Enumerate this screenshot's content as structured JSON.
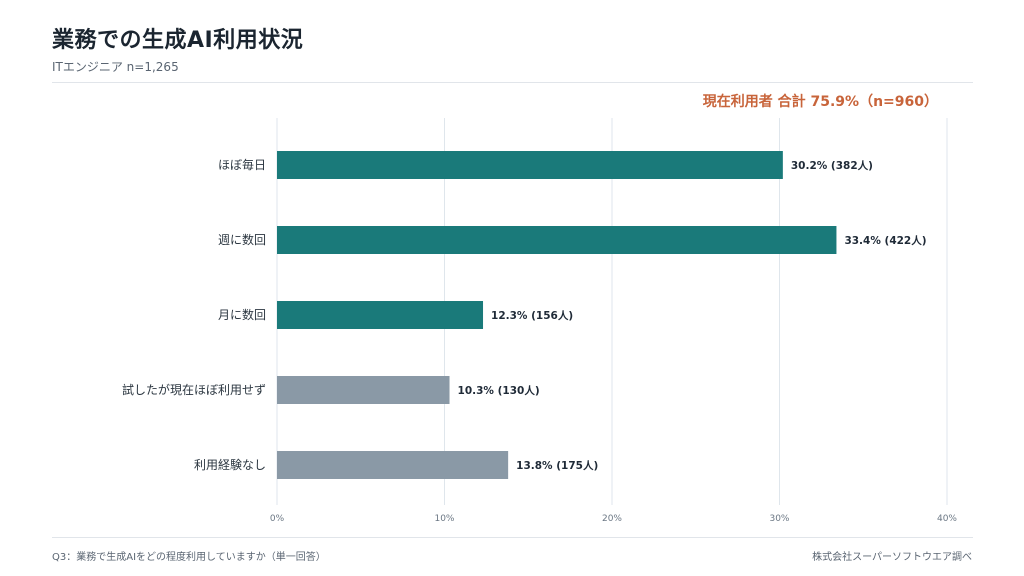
{
  "title": "業務での生成AI利用状況",
  "subtitle": "ITエンジニア n=1,265",
  "callout": "現在利用者 合計 75.9%（n=960）",
  "footnote": "Q3：業務で生成AIをどの程度利用していますか（単一回答）",
  "source": "株式会社スーパーソフトウエア調べ",
  "colors": {
    "used": "#1a7a7a",
    "not_used": "#8a99a6",
    "callout": "#c8643a"
  },
  "chart_data": {
    "type": "bar",
    "orientation": "horizontal",
    "categories": [
      "ほぼ毎日",
      "週に数回",
      "月に数回",
      "試したが現在ほぼ利用せず",
      "利用経験なし"
    ],
    "values": [
      30.2,
      33.4,
      12.3,
      10.3,
      13.8
    ],
    "data_labels": [
      "30.2% (382人)",
      "33.4% (422人)",
      "12.3% (156人)",
      "10.3% (130人)",
      "13.8% (175人)"
    ],
    "bar_groups": [
      "used",
      "used",
      "used",
      "not_used",
      "not_used"
    ],
    "xlim": [
      0,
      40
    ],
    "xticks": [
      "0%",
      "10%",
      "20%",
      "30%",
      "40%"
    ],
    "grid": true,
    "title": "業務での生成AI利用状況"
  }
}
